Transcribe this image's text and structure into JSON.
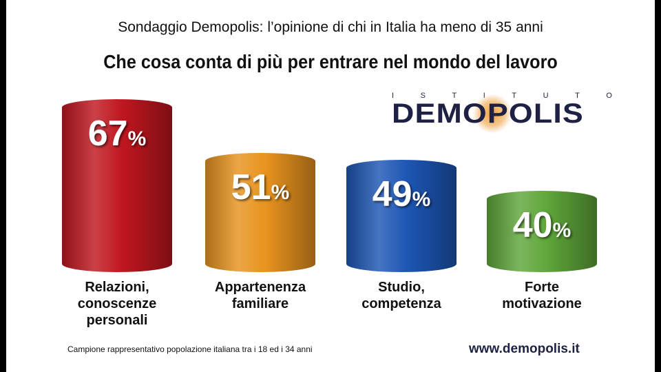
{
  "chart_data": {
    "type": "bar",
    "subtitle": "Sondaggio Demopolis: l’opinione di chi in Italia ha meno di 35 anni",
    "title": "Che cosa conta di più per entrare nel mondo del lavoro",
    "categories": [
      [
        "Relazioni,",
        "conoscenze",
        "personali"
      ],
      [
        "Appartenenza",
        "familiare"
      ],
      [
        "Studio,",
        "competenza"
      ],
      [
        "Forte",
        "motivazione"
      ]
    ],
    "values": [
      67,
      51,
      49,
      40
    ],
    "unit": "%",
    "colors": [
      "#c0161f",
      "#e8931e",
      "#1d56b5",
      "#5fa63a"
    ],
    "xlabel": "",
    "ylabel": "",
    "ylim": [
      16,
      67
    ]
  },
  "logo": {
    "top": "ISTITUTO",
    "main": "DEMOPOLIS"
  },
  "footer": {
    "note": "Campione rappresentativo popolazione italiana tra i 18 ed i 34 anni",
    "url": "www.demopolis.it"
  }
}
